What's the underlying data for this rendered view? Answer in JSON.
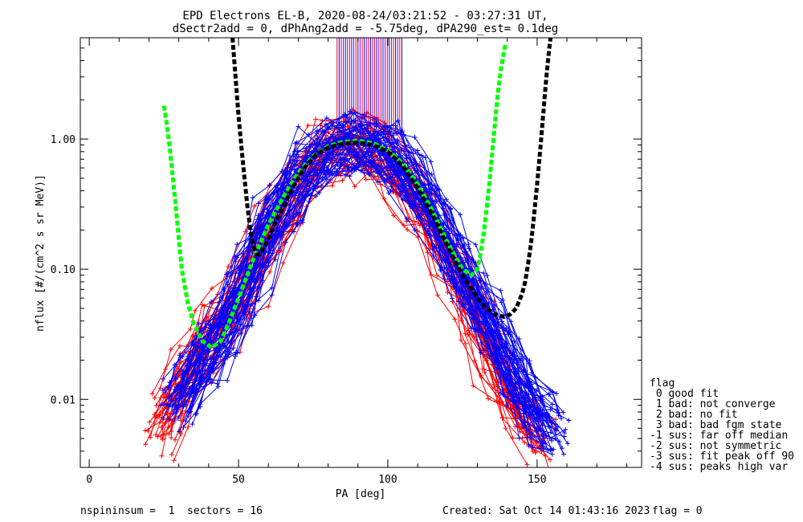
{
  "title_line1": "EPD Electrons EL-B, 2020-08-24/03:21:52 - 03:27:31 UT,",
  "title_line2": "dSectr2add = 0, dPhAng2add = -5.75deg, dPA290_est=   0.1deg",
  "footer": {
    "left": "nspininsum =  1  sectors = 16",
    "created": "Created: Sat Oct 14 01:43:16 2023",
    "flag": "flag = 0"
  },
  "legend": {
    "title": "flag",
    "items": [
      " 0 good fit",
      " 1 bad: not converge",
      " 2 bad: no fit",
      " 3 bad: bad fgm state",
      "-1 sus: far off median",
      "-2 sus: not symmetric",
      "-3 sus: fit peak off 90",
      "-4 sus: peaks high var"
    ]
  },
  "chart_data": {
    "type": "line",
    "xlabel": "PA [deg]",
    "ylabel": "nflux [#/(cm^2 s sr MeV)]",
    "xlim": [
      -3,
      185
    ],
    "ylim": [
      0.003,
      6.0
    ],
    "yscale": "log",
    "xticks": [
      0,
      50,
      100,
      150
    ],
    "xtick_labels": [
      "0",
      "50",
      "100",
      "150"
    ],
    "yticks": [
      0.01,
      0.1,
      1.0
    ],
    "ytick_labels": [
      "0.01",
      "0.10",
      "1.00"
    ],
    "series_colors": {
      "red": "#ff0000",
      "blue": "#0000ff",
      "green": "#00ff00",
      "black": "#000000",
      "purple": "#9900cc"
    },
    "series": [
      {
        "color": "green",
        "style": "dashed",
        "kind": "fit_curve",
        "x": [
          25,
          26,
          27,
          28,
          29,
          30,
          31,
          33,
          35,
          38,
          41,
          44,
          47,
          50,
          55,
          60,
          65,
          70,
          75,
          80,
          85,
          90,
          95,
          100,
          105,
          110,
          115,
          120,
          125,
          128,
          130,
          131,
          132,
          133,
          134,
          135,
          136,
          137,
          138,
          139,
          139.5
        ],
        "y": [
          1.8,
          1.3,
          0.85,
          0.5,
          0.3,
          0.17,
          0.1,
          0.055,
          0.038,
          0.028,
          0.025,
          0.028,
          0.04,
          0.06,
          0.12,
          0.22,
          0.36,
          0.55,
          0.74,
          0.88,
          0.95,
          0.97,
          0.93,
          0.82,
          0.65,
          0.45,
          0.28,
          0.16,
          0.1,
          0.09,
          0.1,
          0.13,
          0.18,
          0.28,
          0.45,
          0.8,
          1.4,
          2.4,
          3.6,
          4.8,
          5.5
        ]
      },
      {
        "color": "black",
        "style": "dashed",
        "kind": "fit_curve",
        "x": [
          48,
          49,
          50,
          51,
          52,
          53,
          54,
          55,
          56,
          57,
          58,
          60,
          62,
          65,
          68,
          72,
          76,
          80,
          85,
          90,
          95,
          100,
          105,
          110,
          115,
          120,
          125,
          130,
          133,
          136,
          139,
          141,
          143,
          145,
          146,
          147,
          148,
          149,
          150,
          151,
          152,
          153,
          154,
          154.5
        ],
        "y": [
          6.0,
          3.0,
          1.5,
          0.85,
          0.5,
          0.3,
          0.2,
          0.15,
          0.13,
          0.13,
          0.14,
          0.17,
          0.22,
          0.3,
          0.42,
          0.6,
          0.76,
          0.86,
          0.92,
          0.94,
          0.9,
          0.8,
          0.62,
          0.42,
          0.26,
          0.15,
          0.09,
          0.06,
          0.05,
          0.045,
          0.043,
          0.045,
          0.05,
          0.065,
          0.08,
          0.11,
          0.16,
          0.26,
          0.45,
          0.8,
          1.5,
          2.8,
          4.8,
          6.0
        ]
      }
    ],
    "scatter_traces": [
      {
        "color": "red",
        "x": [
          25,
          28,
          32,
          36,
          40,
          45,
          50,
          55,
          60,
          65,
          70,
          75,
          80,
          85,
          90,
          95,
          100,
          105,
          110,
          115,
          120,
          125,
          130,
          135,
          140,
          145,
          150
        ],
        "y": [
          0.006,
          0.009,
          0.014,
          0.02,
          0.028,
          0.04,
          0.06,
          0.1,
          0.17,
          0.28,
          0.45,
          0.65,
          0.82,
          0.9,
          0.88,
          0.8,
          0.65,
          0.48,
          0.32,
          0.2,
          0.12,
          0.07,
          0.04,
          0.022,
          0.012,
          0.007,
          0.005
        ]
      },
      {
        "color": "blue",
        "x": [
          30,
          35,
          40,
          45,
          50,
          55,
          60,
          65,
          70,
          75,
          80,
          85,
          90,
          95,
          100,
          105,
          110,
          115,
          120,
          125,
          130,
          135,
          140,
          145,
          150,
          155
        ],
        "y": [
          0.01,
          0.015,
          0.022,
          0.035,
          0.06,
          0.11,
          0.2,
          0.33,
          0.5,
          0.68,
          0.83,
          0.92,
          0.95,
          0.92,
          0.83,
          0.66,
          0.46,
          0.3,
          0.18,
          0.1,
          0.06,
          0.035,
          0.02,
          0.012,
          0.008,
          0.006
        ]
      }
    ],
    "vertical_marker_band": [
      83,
      105
    ]
  }
}
